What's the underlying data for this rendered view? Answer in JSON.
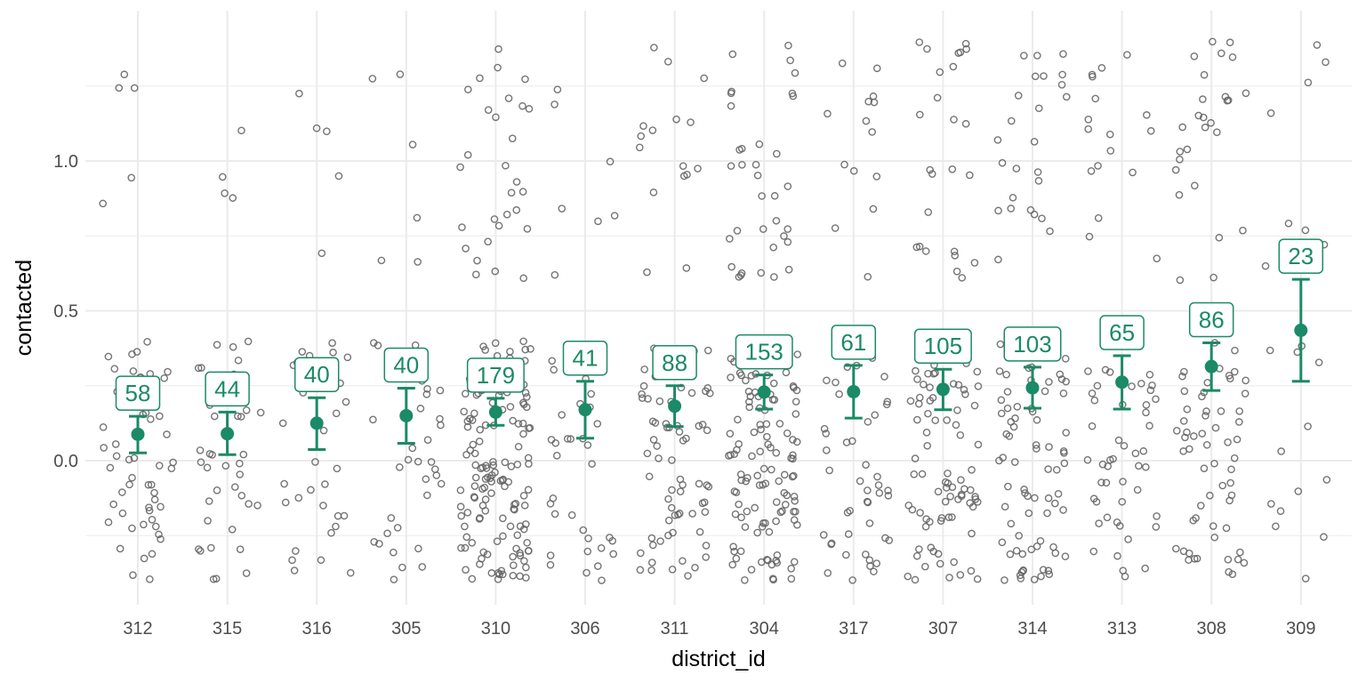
{
  "chart_data": {
    "type": "scatter",
    "xlabel": "district_id",
    "ylabel": "contacted",
    "ylim": [
      -0.49,
      1.5
    ],
    "y_ticks": [
      0.0,
      0.5,
      1.0
    ],
    "y_tick_labels": [
      "0.0",
      "0.5",
      "1.0"
    ],
    "grid": true,
    "categories": [
      "312",
      "315",
      "316",
      "305",
      "310",
      "306",
      "311",
      "304",
      "317",
      "307",
      "314",
      "313",
      "308",
      "309"
    ],
    "summary": [
      {
        "district": "312",
        "n": 58,
        "n_label": "58",
        "mean": 0.088,
        "lower": 0.026,
        "upper": 0.148
      },
      {
        "district": "315",
        "n": 44,
        "n_label": "44",
        "mean": 0.09,
        "lower": 0.02,
        "upper": 0.162
      },
      {
        "district": "316",
        "n": 40,
        "n_label": "40",
        "mean": 0.125,
        "lower": 0.037,
        "upper": 0.21
      },
      {
        "district": "305",
        "n": 40,
        "n_label": "40",
        "mean": 0.15,
        "lower": 0.058,
        "upper": 0.242
      },
      {
        "district": "310",
        "n": 179,
        "n_label": "179",
        "mean": 0.162,
        "lower": 0.118,
        "upper": 0.208
      },
      {
        "district": "306",
        "n": 41,
        "n_label": "41",
        "mean": 0.17,
        "lower": 0.075,
        "upper": 0.265
      },
      {
        "district": "311",
        "n": 88,
        "n_label": "88",
        "mean": 0.182,
        "lower": 0.114,
        "upper": 0.25
      },
      {
        "district": "304",
        "n": 153,
        "n_label": "153",
        "mean": 0.229,
        "lower": 0.172,
        "upper": 0.286
      },
      {
        "district": "317",
        "n": 61,
        "n_label": "61",
        "mean": 0.23,
        "lower": 0.142,
        "upper": 0.318
      },
      {
        "district": "307",
        "n": 105,
        "n_label": "105",
        "mean": 0.238,
        "lower": 0.17,
        "upper": 0.305
      },
      {
        "district": "314",
        "n": 103,
        "n_label": "103",
        "mean": 0.243,
        "lower": 0.175,
        "upper": 0.312
      },
      {
        "district": "313",
        "n": 65,
        "n_label": "65",
        "mean": 0.262,
        "lower": 0.172,
        "upper": 0.35
      },
      {
        "district": "308",
        "n": 86,
        "n_label": "86",
        "mean": 0.314,
        "lower": 0.234,
        "upper": 0.393
      },
      {
        "district": "309",
        "n": 23,
        "n_label": "23",
        "mean": 0.435,
        "lower": 0.265,
        "upper": 0.605
      }
    ],
    "points_note_color": "#5a5a5a",
    "summary_color": "#1b8a66"
  },
  "colors": {
    "grid": "#ebebeb",
    "points": "#666666",
    "accent": "#1b8a66",
    "tick_text": "#4d4d4d",
    "axis_title": "#000000"
  }
}
